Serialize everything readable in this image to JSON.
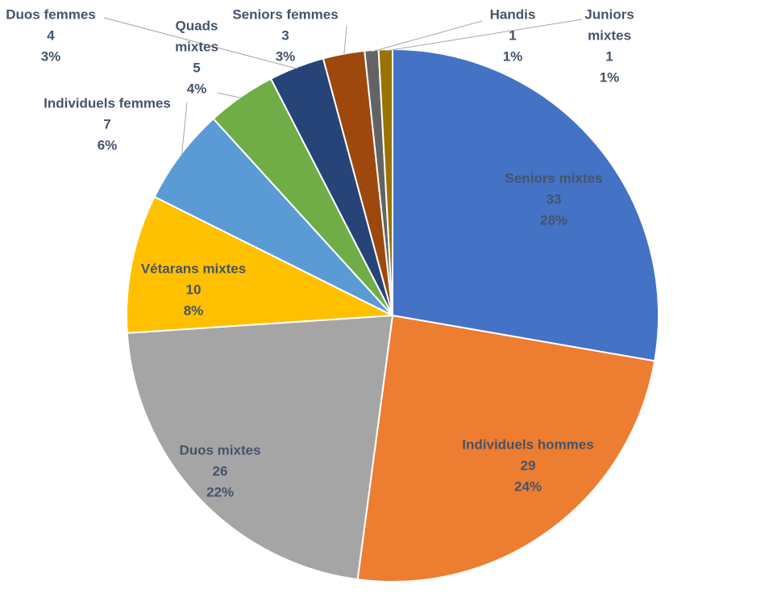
{
  "chart_data": {
    "type": "pie",
    "title": "",
    "slices": [
      {
        "name": "Seniors mixtes",
        "value": 33,
        "percent": "28%",
        "color": "#4472C4"
      },
      {
        "name": "Individuels hommes",
        "value": 29,
        "percent": "24%",
        "color": "#ED7D31"
      },
      {
        "name": "Duos mixtes",
        "value": 26,
        "percent": "22%",
        "color": "#A5A5A5"
      },
      {
        "name": "Vétarans mixtes",
        "value": 10,
        "percent": "8%",
        "color": "#FFC000"
      },
      {
        "name": "Individuels femmes",
        "value": 7,
        "percent": "6%",
        "color": "#5B9BD5"
      },
      {
        "name": "Quads mixtes",
        "value": 5,
        "percent": "4%",
        "color": "#70AD47"
      },
      {
        "name": "Duos femmes",
        "value": 4,
        "percent": "3%",
        "color": "#264478"
      },
      {
        "name": "Seniors femmes",
        "value": 3,
        "percent": "3%",
        "color": "#9E480E"
      },
      {
        "name": "Handis",
        "value": 1,
        "percent": "1%",
        "color": "#636363"
      },
      {
        "name": "Juniors mixtes",
        "value": 1,
        "percent": "1%",
        "color": "#997300"
      }
    ],
    "label_color": "#44546A",
    "legend": "none"
  }
}
